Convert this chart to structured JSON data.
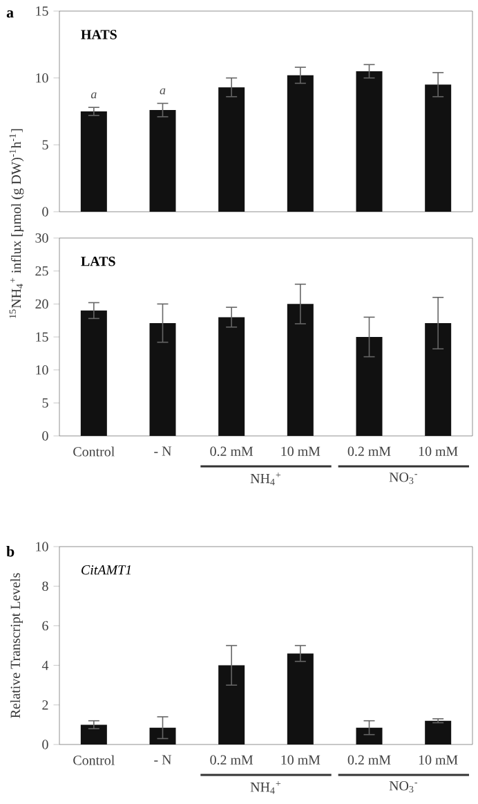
{
  "chart_data": [
    {
      "type": "bar",
      "title": "HATS",
      "ylabel": "$^{15}$NH$_{4}$$^{+}$ influx [µmol (g DW)$^{-1}$h$^{-1}$]",
      "categories": [
        null,
        null,
        null,
        null,
        null,
        null
      ],
      "values": [
        7.5,
        7.6,
        9.3,
        10.2,
        10.5,
        9.5
      ],
      "errors": [
        0.3,
        0.5,
        0.7,
        0.6,
        0.5,
        0.9
      ],
      "color": "#111111",
      "ylim": [
        0,
        15
      ],
      "yticks": [
        0,
        5,
        10,
        15
      ],
      "tick_labels": "y",
      "annotations": [
        "a",
        "a",
        "a"
      ]
    },
    {
      "type": "bar",
      "title": "LATS",
      "categories": [
        "Control",
        "- N",
        "0.2 mM",
        "10 mM",
        "0.2 mM",
        "10 mM"
      ],
      "values": [
        19,
        17.1,
        18,
        20,
        15,
        17.1
      ],
      "errors": [
        1.2,
        2.9,
        1.5,
        3,
        3,
        3.9
      ],
      "color": "#111111",
      "ylim": [
        0,
        30
      ],
      "yticks": [
        0,
        5,
        10,
        15,
        20,
        25,
        30
      ],
      "annotations": [
        "NH$_{4}$$^{+}$",
        "NO$_{3}$$^{-}$"
      ]
    },
    {
      "type": "bar",
      "title": "CitAMT1",
      "ylabel": "Relative Transcript Levels",
      "categories": [
        "Control",
        "- N",
        "0.2 mM",
        "10 mM",
        "0.2 mM",
        "10 mM"
      ],
      "values": [
        1.0,
        0.85,
        4.0,
        4.6,
        0.85,
        1.2
      ],
      "errors": [
        0.2,
        0.55,
        1.0,
        0.4,
        0.35,
        0.1
      ],
      "color": "#111111",
      "ylim": [
        0,
        10
      ],
      "yticks": [
        0,
        2,
        4,
        6,
        8,
        10
      ],
      "annotations": [
        "b",
        "NH$_{4}$$^{+}$",
        "NO$_{3}$$^{-}$"
      ]
    }
  ]
}
